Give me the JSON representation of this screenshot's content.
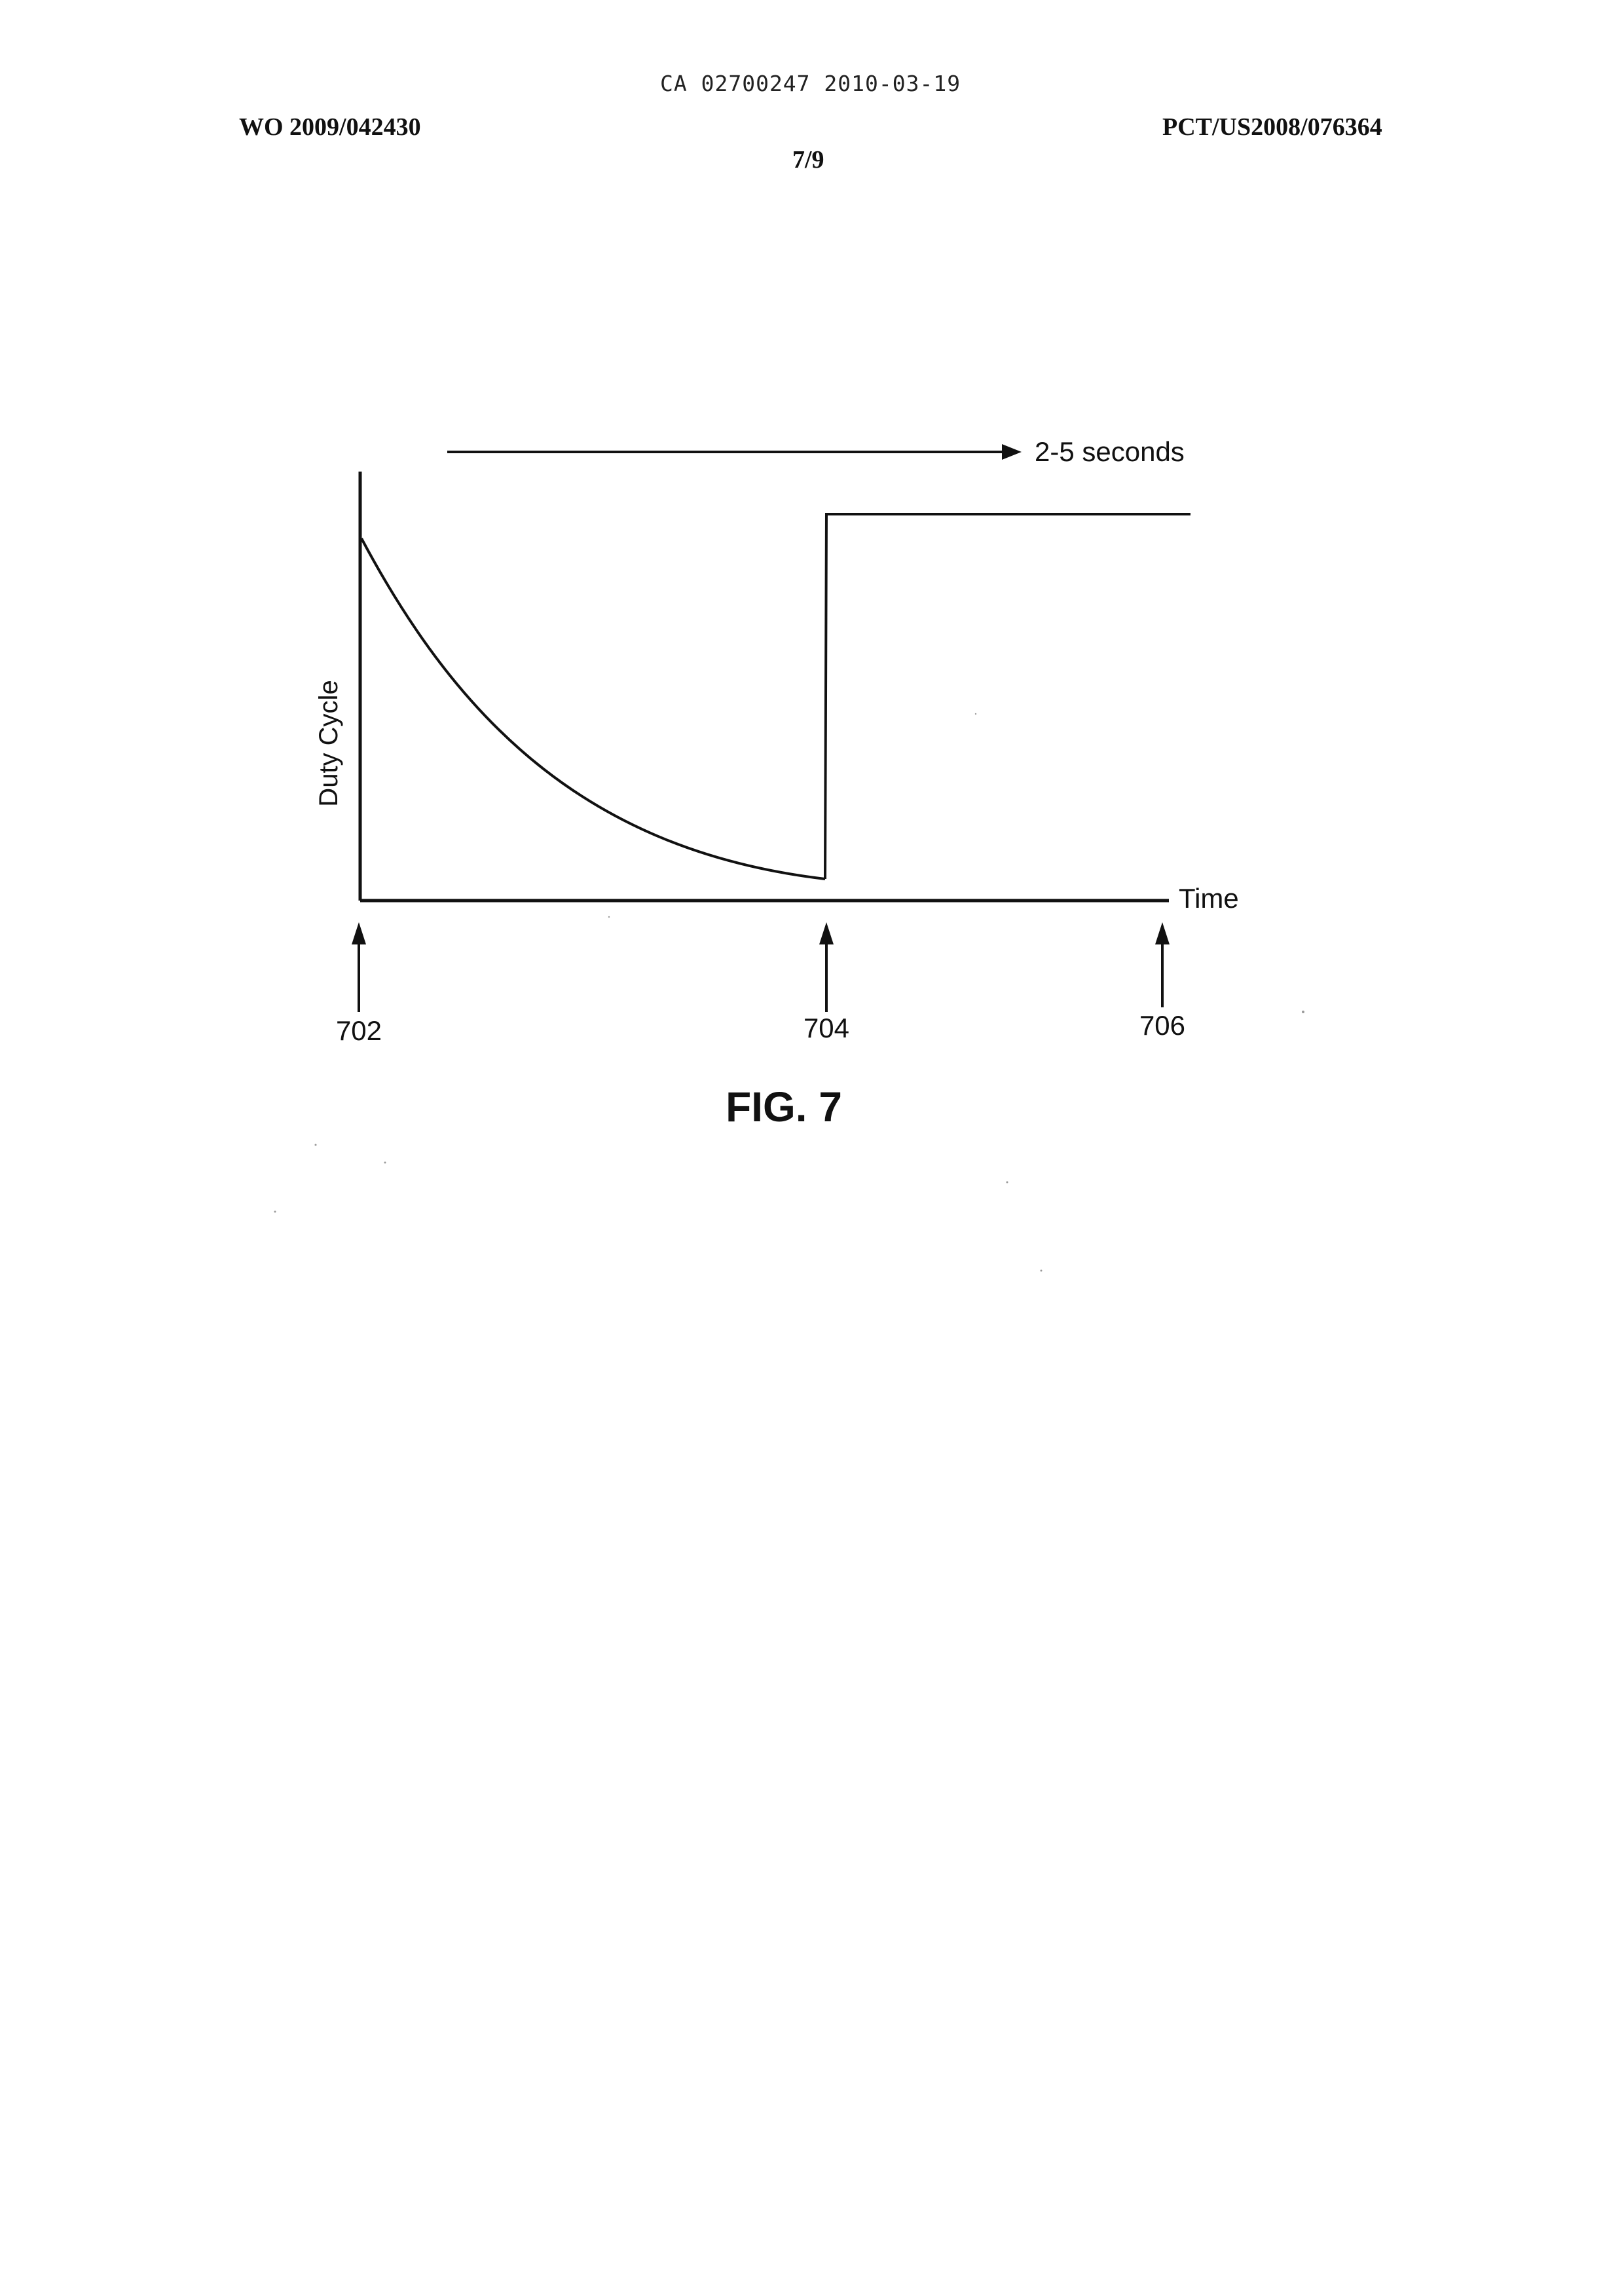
{
  "header": {
    "ca_number": "CA 02700247 2010-03-19",
    "wo_number": "WO 2009/042430",
    "pct_number": "PCT/US2008/076364",
    "sheet": "7/9"
  },
  "figure": {
    "caption": "FIG. 7",
    "ylabel": "Duty Cycle",
    "xlabel": "Time",
    "duration_label": "2-5 seconds",
    "refs": [
      "702",
      "704",
      "706"
    ]
  }
}
